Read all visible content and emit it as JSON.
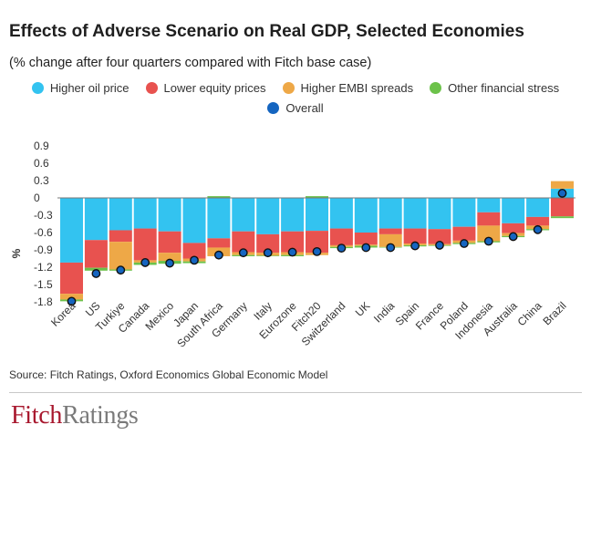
{
  "header": {
    "title": "Effects of Adverse Scenario on Real GDP, Selected Economies",
    "subtitle": "(% change after four quarters compared with Fitch base case)"
  },
  "legend": {
    "items": [
      {
        "label": "Higher oil price",
        "color": "#33c3f0"
      },
      {
        "label": "Lower equity prices",
        "color": "#e8524f"
      },
      {
        "label": "Higher EMBI spreads",
        "color": "#eea847"
      },
      {
        "label": "Other financial stress",
        "color": "#6cc24a"
      },
      {
        "label": "Overall",
        "color": "#1565c0"
      }
    ]
  },
  "footer": {
    "source": "Source: Fitch Ratings, Oxford Economics Global Economic Model",
    "logo_text": "FitchRatings",
    "logo_part1": "Fitch",
    "logo_part2": "Ratings"
  },
  "chart_data": {
    "type": "bar",
    "stacked": true,
    "ylabel": "%",
    "ylim": [
      -1.9,
      0.95
    ],
    "yticks": [
      0.9,
      0.6,
      0.3,
      0,
      -0.3,
      -0.6,
      -0.9,
      -1.2,
      -1.5,
      -1.8
    ],
    "ytick_labels": [
      "0.9",
      "0.6",
      "0.3",
      "0",
      "-0.3",
      "-0.6",
      "-0.9",
      "-1.2",
      "-1.5",
      "-1.8"
    ],
    "grid": false,
    "legend_position": "top",
    "categories": [
      "Korea",
      "US",
      "Turkiye",
      "Canada",
      "Mexico",
      "Japan",
      "South Africa",
      "Germany",
      "Italy",
      "Eurozone",
      "Fitch20",
      "Switzerland",
      "UK",
      "India",
      "Spain",
      "France",
      "Poland",
      "Indonesia",
      "Australia",
      "China",
      "Brazil"
    ],
    "series": [
      {
        "name": "Higher oil price",
        "color": "#33c3f0",
        "values": [
          -1.12,
          -0.73,
          -0.56,
          -0.53,
          -0.58,
          -0.78,
          -0.7,
          -0.58,
          -0.63,
          -0.58,
          -0.57,
          -0.53,
          -0.6,
          -0.53,
          -0.53,
          -0.54,
          -0.5,
          -0.25,
          -0.44,
          -0.33,
          0.16
        ]
      },
      {
        "name": "Lower equity prices",
        "color": "#e8524f",
        "values": [
          -0.54,
          -0.48,
          -0.2,
          -0.55,
          -0.37,
          -0.27,
          -0.16,
          -0.36,
          -0.32,
          -0.36,
          -0.38,
          -0.29,
          -0.21,
          -0.1,
          -0.26,
          -0.26,
          -0.24,
          -0.23,
          -0.17,
          -0.15,
          -0.32
        ]
      },
      {
        "name": "Higher EMBI spreads",
        "color": "#eea847",
        "values": [
          -0.1,
          0,
          -0.48,
          -0.04,
          -0.14,
          -0.05,
          -0.15,
          -0.05,
          -0.05,
          -0.05,
          -0.04,
          -0.03,
          -0.02,
          -0.22,
          -0.03,
          -0.02,
          -0.04,
          -0.27,
          -0.05,
          -0.06,
          0.13
        ]
      },
      {
        "name": "Other financial stress",
        "color": "#6cc24a",
        "values": [
          -0.03,
          -0.05,
          -0.02,
          -0.04,
          -0.05,
          -0.03,
          0.03,
          -0.02,
          -0.01,
          -0.02,
          0.03,
          -0.02,
          -0.03,
          -0.01,
          -0.02,
          -0.01,
          -0.02,
          -0.02,
          -0.02,
          -0.02,
          -0.03
        ]
      }
    ],
    "overall": {
      "name": "Overall",
      "color": "#1565c0",
      "values": [
        -1.79,
        -1.31,
        -1.25,
        -1.12,
        -1.13,
        -1.08,
        -0.99,
        -0.95,
        -0.95,
        -0.94,
        -0.93,
        -0.87,
        -0.86,
        -0.86,
        -0.83,
        -0.82,
        -0.79,
        -0.75,
        -0.67,
        -0.55,
        0.08
      ]
    }
  }
}
